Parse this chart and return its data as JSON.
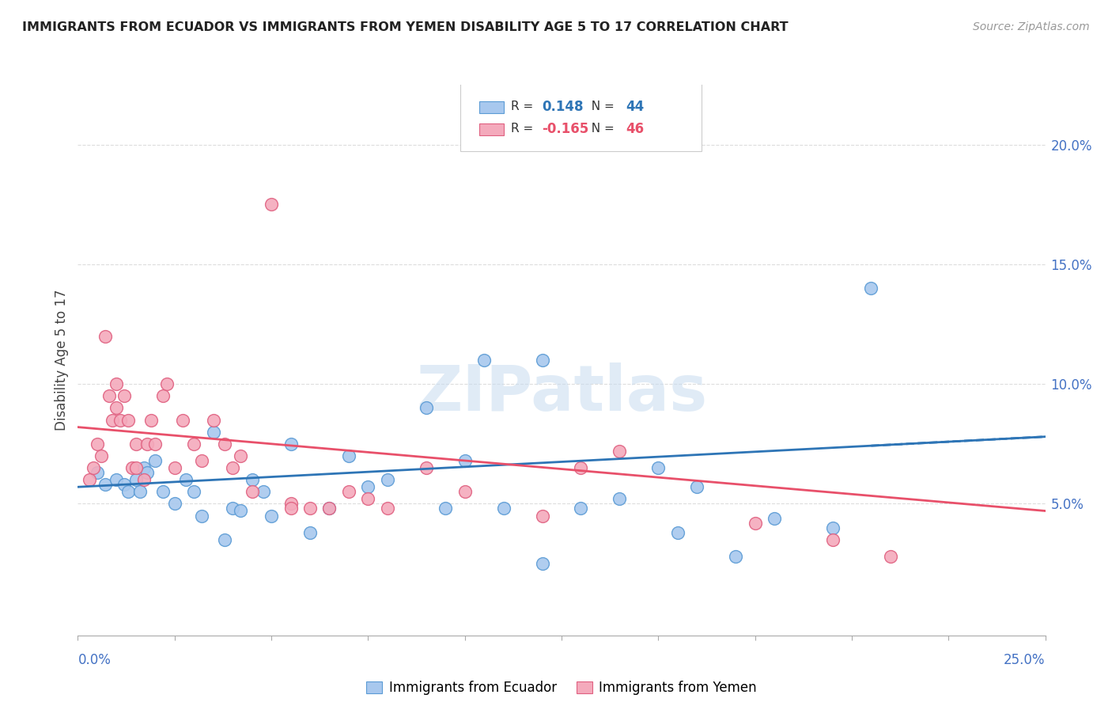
{
  "title": "IMMIGRANTS FROM ECUADOR VS IMMIGRANTS FROM YEMEN DISABILITY AGE 5 TO 17 CORRELATION CHART",
  "source": "Source: ZipAtlas.com",
  "ylabel": "Disability Age 5 to 17",
  "right_yticks": [
    "5.0%",
    "10.0%",
    "15.0%",
    "20.0%"
  ],
  "right_ytick_vals": [
    0.05,
    0.1,
    0.15,
    0.2
  ],
  "xlim": [
    0.0,
    0.25
  ],
  "ylim": [
    -0.005,
    0.225
  ],
  "ecuador_color": "#A8C8EE",
  "ecuador_edge": "#5B9BD5",
  "yemen_color": "#F4AABC",
  "yemen_edge": "#E06080",
  "trend_ecuador_color": "#2E75B6",
  "trend_yemen_color": "#E8506A",
  "ecuador_R": "0.148",
  "ecuador_N": "44",
  "yemen_R": "-0.165",
  "yemen_N": "46",
  "legend_label_ecuador": "Immigrants from Ecuador",
  "legend_label_yemen": "Immigrants from Yemen",
  "watermark": "ZIPatlas",
  "ecuador_x": [
    0.005,
    0.007,
    0.01,
    0.012,
    0.013,
    0.015,
    0.016,
    0.017,
    0.018,
    0.02,
    0.022,
    0.025,
    0.028,
    0.03,
    0.032,
    0.035,
    0.038,
    0.04,
    0.042,
    0.045,
    0.048,
    0.05,
    0.055,
    0.06,
    0.065,
    0.07,
    0.075,
    0.08,
    0.09,
    0.095,
    0.1,
    0.105,
    0.11,
    0.12,
    0.13,
    0.14,
    0.15,
    0.155,
    0.16,
    0.17,
    0.18,
    0.195,
    0.205,
    0.12
  ],
  "ecuador_y": [
    0.063,
    0.058,
    0.06,
    0.058,
    0.055,
    0.06,
    0.055,
    0.065,
    0.063,
    0.068,
    0.055,
    0.05,
    0.06,
    0.055,
    0.045,
    0.08,
    0.035,
    0.048,
    0.047,
    0.06,
    0.055,
    0.045,
    0.075,
    0.038,
    0.048,
    0.07,
    0.057,
    0.06,
    0.09,
    0.048,
    0.068,
    0.11,
    0.048,
    0.11,
    0.048,
    0.052,
    0.065,
    0.038,
    0.057,
    0.028,
    0.044,
    0.04,
    0.14,
    0.025
  ],
  "yemen_x": [
    0.003,
    0.004,
    0.005,
    0.006,
    0.007,
    0.008,
    0.009,
    0.01,
    0.01,
    0.011,
    0.012,
    0.013,
    0.014,
    0.015,
    0.015,
    0.017,
    0.018,
    0.019,
    0.02,
    0.022,
    0.023,
    0.025,
    0.027,
    0.03,
    0.032,
    0.035,
    0.038,
    0.04,
    0.042,
    0.045,
    0.05,
    0.055,
    0.06,
    0.065,
    0.07,
    0.075,
    0.08,
    0.09,
    0.1,
    0.12,
    0.13,
    0.14,
    0.175,
    0.195,
    0.21,
    0.055
  ],
  "yemen_y": [
    0.06,
    0.065,
    0.075,
    0.07,
    0.12,
    0.095,
    0.085,
    0.1,
    0.09,
    0.085,
    0.095,
    0.085,
    0.065,
    0.075,
    0.065,
    0.06,
    0.075,
    0.085,
    0.075,
    0.095,
    0.1,
    0.065,
    0.085,
    0.075,
    0.068,
    0.085,
    0.075,
    0.065,
    0.07,
    0.055,
    0.175,
    0.05,
    0.048,
    0.048,
    0.055,
    0.052,
    0.048,
    0.065,
    0.055,
    0.045,
    0.065,
    0.072,
    0.042,
    0.035,
    0.028,
    0.048
  ],
  "trend_ec_x0": 0.0,
  "trend_ec_x1": 0.25,
  "trend_ec_y0": 0.057,
  "trend_ec_y1": 0.078,
  "trend_ec_dash_x": 0.205,
  "trend_ye_x0": 0.0,
  "trend_ye_x1": 0.25,
  "trend_ye_y0": 0.082,
  "trend_ye_y1": 0.047
}
